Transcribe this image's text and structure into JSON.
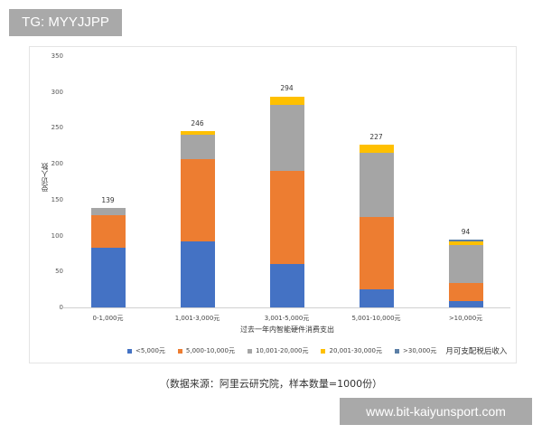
{
  "badge": {
    "text": "TG: MYYJJPP"
  },
  "watermark": {
    "text": "www.bit-kaiyunsport.com"
  },
  "caption": {
    "text": "（数据来源：阿里云研究院，样本数量=1000份）"
  },
  "colors": {
    "lt5000": "#4472c4",
    "5000_10000": "#ed7d31",
    "10001_20000": "#a5a5a5",
    "20001_30000": "#ffc000",
    "gt30000": "#5b7fa6"
  },
  "chart_data": {
    "type": "bar",
    "stacked": true,
    "title": "",
    "xlabel": "过去一年内智能硬件消费支出",
    "ylabel": "受访人数",
    "ylim": [
      0,
      350
    ],
    "yticks": [
      0,
      50,
      100,
      150,
      200,
      250,
      300,
      350
    ],
    "grid": false,
    "legend_position": "bottom",
    "legend_title": "月可支配税后收入",
    "categories": [
      "0-1,000元",
      "1,001-3,000元",
      "3,001-5,000元",
      "5,001-10,000元",
      ">10,000元"
    ],
    "totals": [
      139,
      246,
      294,
      227,
      94
    ],
    "series": [
      {
        "name": "<5,000元",
        "color": "#4472c4",
        "values": [
          83,
          92,
          61,
          25,
          9
        ]
      },
      {
        "name": "5,000-10,000元",
        "color": "#ed7d31",
        "values": [
          46,
          115,
          129,
          101,
          25
        ]
      },
      {
        "name": "10,001-20,000元",
        "color": "#a5a5a5",
        "values": [
          10,
          33,
          92,
          89,
          53
        ]
      },
      {
        "name": "20,001-30,000元",
        "color": "#ffc000",
        "values": [
          0,
          6,
          11,
          12,
          5
        ]
      },
      {
        "name": ">30,000元",
        "color": "#5b7fa6",
        "values": [
          0,
          0,
          1,
          0,
          2
        ]
      }
    ]
  }
}
